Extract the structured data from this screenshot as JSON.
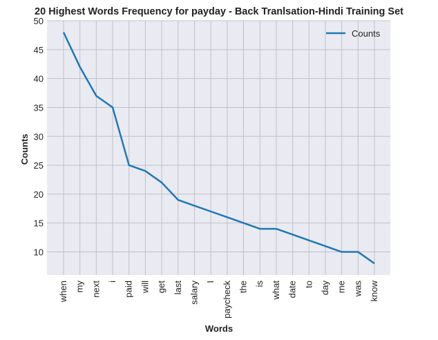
{
  "chart_data": {
    "type": "line",
    "title": "20 Highest Words Frequency for payday - Back Tranlsation-Hindi Training Set",
    "xlabel": "Words",
    "ylabel": "Counts",
    "categories": [
      "when",
      "my",
      "next",
      "i",
      "paid",
      "will",
      "get",
      "last",
      "salary",
      "I",
      "paycheck",
      "the",
      "is",
      "what",
      "date",
      "to",
      "day",
      "me",
      "was",
      "know"
    ],
    "series": [
      {
        "name": "Counts",
        "color": "#1f77b4",
        "values": [
          48,
          42,
          37,
          35,
          25,
          24,
          22,
          19,
          18,
          17,
          16,
          15,
          14,
          14,
          13,
          12,
          11,
          10,
          10,
          8
        ]
      }
    ],
    "ylim": [
      6,
      50
    ],
    "yticks": [
      10,
      15,
      20,
      25,
      30,
      35,
      40,
      45,
      50
    ],
    "grid": true,
    "legend_position": "top-right",
    "colors": {
      "plot_background": "#eaeaf2",
      "grid": "#c0c0c8",
      "line": "#1f77b4"
    }
  }
}
